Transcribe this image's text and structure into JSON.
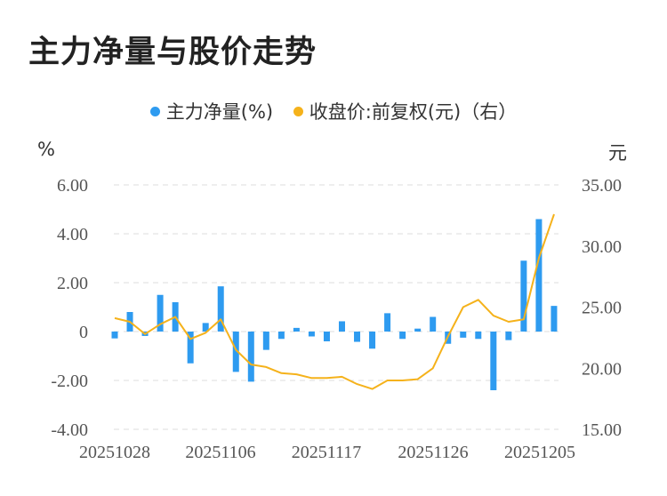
{
  "title": "主力净量与股价走势",
  "colors": {
    "bar": "#2e9bf0",
    "line": "#f5b21b",
    "grid": "#dddddd"
  },
  "chart_data": {
    "type": "bar+line",
    "title": "主力净量与股价走势",
    "legend_placement": "top-center",
    "grid": true,
    "left_axis": {
      "unit": "%",
      "ylim": [
        -4,
        6
      ],
      "ticks": [
        "6.00",
        "4.00",
        "2.00",
        "0",
        "-2.00",
        "-4.00"
      ]
    },
    "right_axis": {
      "unit": "元",
      "ylim": [
        15,
        35
      ],
      "ticks": [
        "35.00",
        "30.00",
        "25.00",
        "20.00",
        "15.00"
      ]
    },
    "x_tick_labels": [
      "20251028",
      "20251106",
      "20251117",
      "20251126",
      "20251205"
    ],
    "series": [
      {
        "name": "主力净量(%)",
        "type": "bar",
        "axis": "left",
        "values": [
          -0.28,
          0.8,
          -0.18,
          1.5,
          1.2,
          -1.3,
          0.35,
          1.85,
          -1.65,
          -2.05,
          -0.75,
          -0.3,
          0.15,
          -0.2,
          -0.4,
          0.42,
          -0.42,
          -0.7,
          0.75,
          -0.3,
          0.12,
          0.6,
          -0.5,
          -0.25,
          -0.3,
          -2.4,
          -0.35,
          2.9,
          4.6,
          1.05
        ]
      },
      {
        "name": "收盘价:前复权(元)（右）",
        "type": "line",
        "axis": "right",
        "values": [
          24.1,
          23.8,
          22.8,
          23.6,
          24.2,
          22.4,
          22.9,
          24.0,
          21.5,
          20.3,
          20.1,
          19.6,
          19.5,
          19.2,
          19.2,
          19.3,
          18.7,
          18.3,
          19.0,
          19.0,
          19.1,
          20.0,
          22.6,
          25.0,
          25.6,
          24.3,
          23.8,
          24.0,
          29.0,
          32.6
        ]
      }
    ]
  }
}
